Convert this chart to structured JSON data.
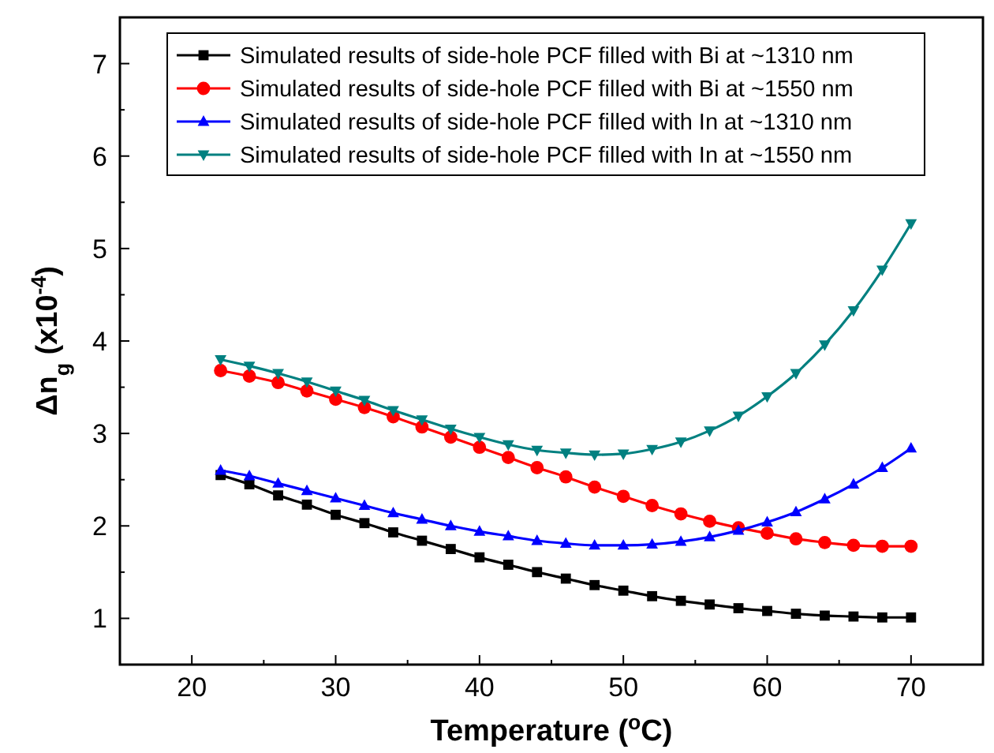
{
  "chart_data": {
    "type": "line",
    "xlabel": "Temperature ($^{o}$C)",
    "ylabel": "Δn$_{g}$ (x10$^{-4}$)",
    "x": [
      22,
      24,
      26,
      28,
      30,
      32,
      34,
      36,
      38,
      40,
      42,
      44,
      46,
      48,
      50,
      52,
      54,
      56,
      58,
      60,
      62,
      64,
      66,
      68,
      70
    ],
    "xlim": [
      15,
      75
    ],
    "xticks": [
      {
        "value": 15,
        "label": null
      },
      20,
      {
        "value": 25,
        "label": null
      },
      30,
      {
        "value": 35,
        "label": null
      },
      40,
      {
        "value": 45,
        "label": null
      },
      50,
      {
        "value": 55,
        "label": null
      },
      60,
      {
        "value": 65,
        "label": null
      },
      70,
      {
        "value": 75,
        "label": null
      }
    ],
    "ylim": [
      0.5,
      7.5
    ],
    "yticks": [
      {
        "value": 0.5,
        "label": null
      },
      1,
      {
        "value": 1.5,
        "label": null
      },
      2,
      {
        "value": 2.5,
        "label": null
      },
      3,
      {
        "value": 3.5,
        "label": null
      },
      4,
      {
        "value": 4.5,
        "label": null
      },
      5,
      {
        "value": 5.5,
        "label": null
      },
      6,
      {
        "value": 6.5,
        "label": null
      },
      7,
      {
        "value": 7.5,
        "label": null
      }
    ],
    "grid": false,
    "legend": "top",
    "line_style": "solid",
    "series": [
      {
        "name": "Simulated results of side-hole PCF filled with Bi at ~1310 nm",
        "color": "#000000",
        "marker": "square",
        "values": [
          2.55,
          2.45,
          2.33,
          2.23,
          2.12,
          2.03,
          1.93,
          1.84,
          1.75,
          1.66,
          1.58,
          1.5,
          1.43,
          1.36,
          1.3,
          1.24,
          1.19,
          1.15,
          1.11,
          1.08,
          1.05,
          1.03,
          1.02,
          1.01,
          1.01
        ]
      },
      {
        "name": "Simulated results of side-hole PCF filled with Bi at ~1550 nm",
        "color": "#ff0000",
        "marker": "circle",
        "values": [
          3.68,
          3.62,
          3.55,
          3.46,
          3.37,
          3.28,
          3.18,
          3.07,
          2.96,
          2.85,
          2.74,
          2.63,
          2.53,
          2.42,
          2.32,
          2.22,
          2.13,
          2.05,
          1.98,
          1.92,
          1.86,
          1.82,
          1.79,
          1.78,
          1.78
        ]
      },
      {
        "name": "Simulated results of side-hole PCF filled with In at ~1310 nm",
        "color": "#0000ff",
        "marker": "triangle",
        "values": [
          2.6,
          2.54,
          2.46,
          2.38,
          2.3,
          2.22,
          2.14,
          2.07,
          2.0,
          1.94,
          1.89,
          1.84,
          1.81,
          1.79,
          1.79,
          1.8,
          1.83,
          1.88,
          1.95,
          2.04,
          2.15,
          2.29,
          2.45,
          2.63,
          2.84
        ]
      },
      {
        "name": "Simulated results of side-hole PCF filled with In at ~1550 nm",
        "color": "#008080",
        "marker": "triangle-down",
        "values": [
          3.8,
          3.73,
          3.65,
          3.56,
          3.46,
          3.36,
          3.25,
          3.15,
          3.05,
          2.96,
          2.88,
          2.82,
          2.79,
          2.77,
          2.78,
          2.83,
          2.91,
          3.03,
          3.19,
          3.4,
          3.65,
          3.96,
          4.33,
          4.77,
          5.27
        ]
      }
    ]
  }
}
